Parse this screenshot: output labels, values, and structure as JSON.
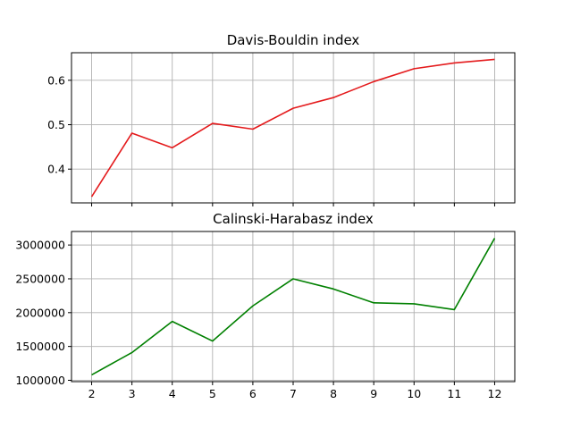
{
  "chart_data": [
    {
      "type": "line",
      "title": "Davis-Bouldin index",
      "xlabel": "",
      "ylabel": "",
      "x": [
        2,
        3,
        4,
        5,
        6,
        7,
        8,
        9,
        10,
        11,
        12
      ],
      "series": [
        {
          "color": "#e41a1c",
          "values": [
            0.338,
            0.481,
            0.448,
            0.503,
            0.49,
            0.537,
            0.561,
            0.597,
            0.626,
            0.639,
            0.647
          ]
        }
      ],
      "ylim": [
        0.324,
        0.662
      ],
      "yticks": [
        0.4,
        0.5,
        0.6
      ],
      "ytick_labels": [
        "0.4",
        "0.5",
        "0.6"
      ],
      "xlim": [
        1.5,
        12.5
      ],
      "show_xtick_labels": false,
      "grid": true
    },
    {
      "type": "line",
      "title": "Calinski-Harabasz index",
      "xlabel": "",
      "ylabel": "",
      "x": [
        2,
        3,
        4,
        5,
        6,
        7,
        8,
        9,
        10,
        11,
        12
      ],
      "series": [
        {
          "color": "#008000",
          "values": [
            1080000,
            1410000,
            1870000,
            1580000,
            2100000,
            2500000,
            2350000,
            2145000,
            2130000,
            2045000,
            3100000
          ]
        }
      ],
      "ylim": [
        980000,
        3200000
      ],
      "yticks": [
        1000000,
        1500000,
        2000000,
        2500000,
        3000000
      ],
      "ytick_labels": [
        "1000000",
        "1500000",
        "2000000",
        "2500000",
        "3000000"
      ],
      "xlim": [
        1.5,
        12.5
      ],
      "xtick_labels": [
        "2",
        "3",
        "4",
        "5",
        "6",
        "7",
        "8",
        "9",
        "10",
        "11",
        "12"
      ],
      "show_xtick_labels": true,
      "grid": true
    }
  ]
}
